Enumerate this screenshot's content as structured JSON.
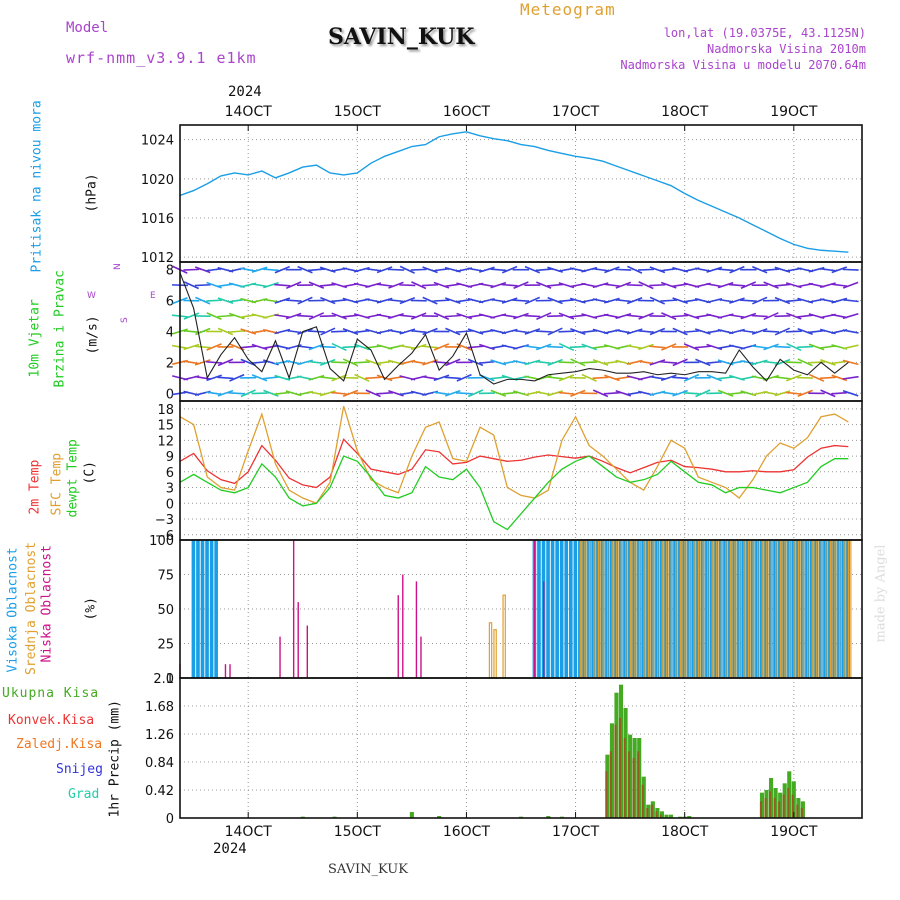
{
  "header": {
    "model_label": "Model",
    "model_name": "wrf-nmm_v3.9.1 e1km",
    "station": "SAVIN_KUK",
    "product": "Meteogram",
    "lonlat": "lon,lat (19.0375E, 43.1125N)",
    "elevation": "Nadmorska Visina 2010m",
    "model_elevation": "Nadmorska Visina u modelu 2070.64m",
    "footer_station": "SAVIN_KUK",
    "watermark": "made by Angel"
  },
  "time_axis": {
    "year": "2024",
    "tick_labels": [
      "14OCT",
      "15OCT",
      "16OCT",
      "17OCT",
      "18OCT",
      "19OCT"
    ]
  },
  "colors": {
    "pressure": "#1a9ee6",
    "temp2m": "#ee3333",
    "sfc_temp": "#e0a030",
    "dewpt": "#22cc22",
    "visoka": "#1a9ee6",
    "srednja": "#e0a030",
    "niska": "#cc1188",
    "precip_total": "#44aa22",
    "precip_conv": "#ee3333",
    "precip_frozen": "#ee7722",
    "snow": "#3333dd",
    "hail": "#22ccaa",
    "wind_purple": "#7722cc"
  },
  "chart_data": [
    {
      "type": "line",
      "panel": "pressure",
      "ylabel_colored": "Pritisak na nivou mora",
      "unit": "(hPa)",
      "ylim": [
        1011.5,
        1025.5
      ],
      "yticks": [
        1012,
        1016,
        1020,
        1024
      ],
      "x_hours": [
        0,
        3,
        6,
        9,
        12,
        15,
        18,
        21,
        24,
        27,
        30,
        33,
        36,
        39,
        42,
        45,
        48,
        51,
        54,
        57,
        60,
        63,
        66,
        69,
        72,
        75,
        78,
        81,
        84,
        87,
        90,
        93,
        96,
        99,
        102,
        105,
        108,
        111,
        114,
        117,
        120,
        123,
        126,
        129,
        132,
        135,
        138,
        141,
        144,
        147
      ],
      "series": [
        {
          "values": [
            1018.3,
            1018.8,
            1019.5,
            1020.3,
            1020.6,
            1020.4,
            1020.8,
            1020.1,
            1020.6,
            1021.2,
            1021.4,
            1020.6,
            1020.4,
            1020.6,
            1021.6,
            1022.3,
            1022.8,
            1023.3,
            1023.5,
            1024.3,
            1024.6,
            1024.8,
            1024.4,
            1024.1,
            1023.9,
            1023.5,
            1023.3,
            1022.9,
            1022.6,
            1022.3,
            1022.1,
            1021.8,
            1021.3,
            1020.8,
            1020.3,
            1019.8,
            1019.3,
            1018.5,
            1017.8,
            1017.2,
            1016.6,
            1016.0,
            1015.3,
            1014.6,
            1013.9,
            1013.3,
            1012.9,
            1012.7,
            1012.6,
            1012.5
          ]
        }
      ]
    },
    {
      "type": "line",
      "panel": "wind",
      "ylabel_colored_1": "10m Vjetar",
      "ylabel_colored_2": "Brzina i Pravac",
      "unit": "(m/s)",
      "compass": {
        "n": "N",
        "e": "E",
        "s": "S",
        "w": "W"
      },
      "ylim": [
        -0.5,
        8.5
      ],
      "yticks": [
        0,
        2,
        4,
        6,
        8
      ],
      "x_hours": [
        0,
        3,
        6,
        9,
        12,
        15,
        18,
        21,
        24,
        27,
        30,
        33,
        36,
        39,
        42,
        45,
        48,
        51,
        54,
        57,
        60,
        63,
        66,
        69,
        72,
        75,
        78,
        81,
        84,
        87,
        90,
        93,
        96,
        99,
        102,
        105,
        108,
        111,
        114,
        117,
        120,
        123,
        126,
        129,
        132,
        135,
        138,
        141,
        144,
        147
      ],
      "series": [
        {
          "name_hidden": "speed",
          "values": [
            7.8,
            5.5,
            1.0,
            2.5,
            3.6,
            2.2,
            1.4,
            3.4,
            1.0,
            4.0,
            4.3,
            1.6,
            0.8,
            3.5,
            2.8,
            0.9,
            1.8,
            2.6,
            3.8,
            1.5,
            2.4,
            3.9,
            1.2,
            0.6,
            0.9,
            0.9,
            0.8,
            1.2,
            1.3,
            1.4,
            1.6,
            1.5,
            1.3,
            1.3,
            1.4,
            1.2,
            1.3,
            1.2,
            1.4,
            1.4,
            1.3,
            2.8,
            1.7,
            0.8,
            2.2,
            1.5,
            1.2,
            2.0,
            1.3,
            2.0
          ]
        }
      ]
    },
    {
      "type": "line",
      "panel": "temperature",
      "ylabel_colored_1": "2m Temp",
      "ylabel_colored_2": "SFC Temp",
      "ylabel_colored_3": "dewpt Temp",
      "unit": "(C)",
      "ylim": [
        -7,
        19.5
      ],
      "yticks": [
        -6,
        -3,
        0,
        3,
        6,
        9,
        12,
        15,
        18
      ],
      "x_hours": [
        0,
        3,
        6,
        9,
        12,
        15,
        18,
        21,
        24,
        27,
        30,
        33,
        36,
        39,
        42,
        45,
        48,
        51,
        54,
        57,
        60,
        63,
        66,
        69,
        72,
        75,
        78,
        81,
        84,
        87,
        90,
        93,
        96,
        99,
        102,
        105,
        108,
        111,
        114,
        117,
        120,
        123,
        126,
        129,
        132,
        135,
        138,
        141,
        144,
        147
      ],
      "series": [
        {
          "name_hidden": "2m",
          "values": [
            8.0,
            9.5,
            6.2,
            4.5,
            3.8,
            6.0,
            11.0,
            8.2,
            4.8,
            3.5,
            3.0,
            5.0,
            12.2,
            9.5,
            6.5,
            6.0,
            5.5,
            6.5,
            10.2,
            9.8,
            7.5,
            7.8,
            9.0,
            8.5,
            8.0,
            8.2,
            8.8,
            9.2,
            8.9,
            8.6,
            9.0,
            8.0,
            6.8,
            5.8,
            6.8,
            7.8,
            8.2,
            7.0,
            6.8,
            6.5,
            6.0,
            6.0,
            6.2,
            6.0,
            6.0,
            6.4,
            8.8,
            10.5,
            11.0,
            10.8
          ]
        },
        {
          "name_hidden": "sfc",
          "values": [
            16.5,
            15.0,
            5.0,
            3.0,
            2.5,
            10.0,
            17.0,
            7.5,
            2.5,
            1.0,
            0.0,
            4.0,
            18.5,
            10.0,
            4.5,
            3.0,
            2.0,
            9.0,
            14.5,
            15.5,
            8.5,
            8.0,
            14.5,
            13.0,
            3.0,
            1.5,
            1.0,
            2.5,
            12.0,
            16.5,
            11.0,
            9.0,
            6.5,
            4.0,
            2.5,
            7.0,
            12.0,
            10.5,
            5.0,
            4.0,
            3.0,
            1.0,
            4.5,
            9.0,
            11.5,
            10.5,
            12.5,
            16.5,
            17.0,
            15.5
          ]
        },
        {
          "name_hidden": "dewpt",
          "values": [
            4.0,
            5.5,
            4.0,
            2.5,
            2.0,
            3.0,
            7.5,
            5.0,
            1.0,
            -0.5,
            0.0,
            3.0,
            9.0,
            8.0,
            5.0,
            1.5,
            1.0,
            2.0,
            7.0,
            5.0,
            4.5,
            6.5,
            3.0,
            -3.5,
            -5.0,
            -2.0,
            1.0,
            4.0,
            6.5,
            8.0,
            9.0,
            7.0,
            5.0,
            4.0,
            4.5,
            5.5,
            8.0,
            6.0,
            4.0,
            3.5,
            2.0,
            3.0,
            3.0,
            2.5,
            2.0,
            3.0,
            4.0,
            7.0,
            8.5,
            8.5
          ]
        }
      ]
    },
    {
      "type": "bar",
      "panel": "cloud",
      "ylabel_colored_1": "Visoka Oblacnost",
      "ylabel_colored_2": "Srednja Oblacnost",
      "ylabel_colored_3": "Niska Oblacnost",
      "unit": "(%)",
      "ylim": [
        0,
        100
      ],
      "yticks": [
        0,
        25,
        50,
        75,
        100
      ],
      "x_hours": [
        0,
        1,
        2,
        3,
        4,
        5,
        6,
        7,
        8,
        10,
        11,
        12,
        14,
        22,
        25,
        26,
        28,
        30,
        48,
        49,
        52,
        53,
        54,
        57,
        59,
        63,
        64,
        68,
        69,
        71,
        78,
        79,
        80,
        81,
        82,
        83,
        84,
        85,
        86,
        87,
        88,
        89,
        90,
        91,
        92,
        93,
        94,
        95,
        96,
        97,
        98,
        99,
        100,
        101,
        102,
        103,
        104,
        105,
        106,
        107,
        108,
        109,
        110,
        111,
        112,
        113,
        114,
        115,
        116,
        117,
        118,
        119,
        120,
        121,
        122,
        123,
        124,
        125,
        126,
        127,
        128,
        129,
        130,
        131,
        132,
        133,
        134,
        135,
        136,
        137,
        138,
        139,
        140,
        141,
        142,
        143,
        144,
        145,
        146,
        147
      ],
      "visoka": [
        0,
        0,
        0,
        100,
        100,
        100,
        100,
        100,
        100,
        0,
        0,
        0,
        0,
        0,
        0,
        0,
        0,
        0,
        0,
        0,
        0,
        0,
        0,
        0,
        0,
        0,
        0,
        0,
        0,
        0,
        100,
        100,
        100,
        100,
        100,
        100,
        100,
        100,
        100,
        100,
        100,
        100,
        100,
        100,
        100,
        100,
        100,
        100,
        100,
        100,
        100,
        100,
        100,
        100,
        100,
        100,
        100,
        100,
        100,
        100,
        100,
        100,
        100,
        100,
        100,
        100,
        100,
        100,
        100,
        100,
        100,
        100,
        100,
        100,
        100,
        100,
        100,
        100,
        100,
        100,
        100,
        100,
        100,
        100,
        100,
        100,
        100,
        100,
        100,
        100,
        100,
        100,
        100,
        100,
        100,
        100,
        100,
        100,
        100,
        100
      ],
      "srednja": [
        0,
        0,
        0,
        0,
        0,
        0,
        0,
        0,
        0,
        0,
        0,
        0,
        0,
        0,
        0,
        0,
        0,
        0,
        0,
        0,
        0,
        0,
        0,
        0,
        0,
        0,
        0,
        40,
        35,
        60,
        0,
        0,
        0,
        0,
        0,
        0,
        0,
        0,
        0,
        0,
        100,
        100,
        100,
        100,
        100,
        100,
        100,
        100,
        100,
        100,
        100,
        100,
        100,
        100,
        100,
        100,
        100,
        100,
        100,
        100,
        100,
        100,
        100,
        100,
        100,
        100,
        100,
        100,
        100,
        100,
        100,
        100,
        100,
        100,
        100,
        100,
        100,
        100,
        100,
        100,
        100,
        100,
        100,
        100,
        100,
        100,
        100,
        100,
        100,
        100,
        100,
        100,
        100,
        100,
        100,
        100,
        100,
        100,
        100,
        100
      ],
      "niska": [
        10,
        0,
        0,
        0,
        0,
        0,
        0,
        0,
        0,
        10,
        10,
        0,
        0,
        30,
        100,
        55,
        38,
        0,
        60,
        75,
        70,
        30,
        0,
        0,
        0,
        0,
        0,
        0,
        0,
        0,
        100,
        0,
        70,
        0,
        0,
        0,
        0,
        0,
        0,
        0,
        0,
        0,
        0,
        0,
        0,
        0,
        0,
        0,
        0,
        0,
        0,
        0,
        0,
        0,
        0,
        0,
        0,
        0,
        0,
        0,
        0,
        0,
        0,
        0,
        0,
        0,
        0,
        0,
        0,
        0,
        0,
        0,
        0,
        0,
        0,
        0,
        0,
        0,
        0,
        0,
        0,
        0,
        0,
        0,
        0,
        0,
        0,
        0,
        0,
        0,
        0,
        0,
        0,
        0,
        0,
        0,
        0,
        0,
        0,
        0
      ]
    },
    {
      "type": "bar",
      "panel": "precip",
      "ylabel": "1hr Precip (mm)",
      "legend": [
        "Ukupna Kisa",
        "Konvek.Kisa",
        "Zaledj.Kisa",
        "Snijeg",
        "Grad"
      ],
      "ylim": [
        0,
        2.1
      ],
      "yticks": [
        0,
        0.42,
        0.84,
        1.26,
        1.68,
        2.1
      ],
      "ytick_labels": [
        "0",
        "0.42",
        "0.84",
        "1.26",
        "1.68",
        "2.1"
      ],
      "x_hours": [
        27,
        34,
        51,
        57,
        75,
        81,
        84,
        94,
        95,
        96,
        97,
        98,
        99,
        100,
        101,
        102,
        103,
        104,
        105,
        106,
        107,
        108,
        110,
        111,
        112,
        128,
        129,
        130,
        131,
        132,
        133,
        134,
        135,
        136,
        137
      ],
      "total": [
        0.02,
        0.02,
        0.09,
        0.03,
        0.02,
        0.03,
        0.02,
        0.95,
        1.42,
        1.88,
        2.0,
        1.65,
        1.25,
        1.2,
        1.2,
        0.62,
        0.2,
        0.25,
        0.15,
        0.1,
        0.05,
        0.05,
        0.02,
        0.02,
        0.03,
        0.38,
        0.42,
        0.6,
        0.45,
        0.38,
        0.52,
        0.7,
        0.55,
        0.3,
        0.25
      ],
      "convective": [
        0,
        0,
        0,
        0,
        0,
        0,
        0,
        0.7,
        1.0,
        1.4,
        1.5,
        1.2,
        1.0,
        0.9,
        1.0,
        0.5,
        0.15,
        0.2,
        0.1,
        0.05,
        0,
        0,
        0,
        0,
        0,
        0.25,
        0.3,
        0.4,
        0.3,
        0.25,
        0.35,
        0.45,
        0.35,
        0.2,
        0.15
      ]
    }
  ]
}
